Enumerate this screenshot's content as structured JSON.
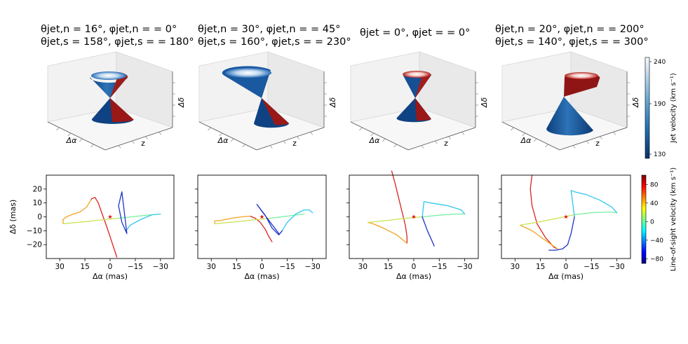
{
  "panel_titles": [
    {
      "line1": "θjet,n = 16°, φjet,n = = 0°",
      "line2": "θjet,s = 158°, φjet,s = = 180°"
    },
    {
      "line1": "θjet,n = 30°, φjet,n = = 45°",
      "line2": "θjet,s = 160°, φjet,s = = 230°"
    },
    {
      "line1": "θjet = 0°, φjet = = 0°",
      "line2": ""
    },
    {
      "line1": "θjet,n = 20°, φjet,n = = 200°",
      "line2": "θjet,s = 140°, φjet,s = = 300°"
    }
  ],
  "axis3d_labels": {
    "x": "Δα",
    "y": "z",
    "z": "Δδ"
  },
  "colorbars": {
    "top": {
      "label": "Jet velocity (km s⁻¹)",
      "ticks": [
        130,
        190,
        240
      ],
      "range": [
        125,
        245
      ],
      "colormap": "Blues"
    },
    "bottom": {
      "label": "Line-of-sight velocity (km s⁻¹)",
      "ticks": [
        80,
        40,
        0,
        -40,
        -80
      ],
      "tick_labels": [
        "80",
        "40",
        "0",
        "−40",
        "−80"
      ],
      "range": [
        -90,
        100
      ],
      "colormap": "jet"
    }
  },
  "chart_data": [
    {
      "type": "line",
      "panel": 1,
      "xlabel": "Δα (mas)",
      "ylabel": "Δδ (mas)",
      "xlim": [
        38,
        -38
      ],
      "ylim": [
        -30,
        30
      ],
      "xticks": [
        30,
        15,
        0,
        -15,
        -30
      ],
      "xtick_labels": [
        "30",
        "15",
        "0",
        "−15",
        "−30"
      ],
      "yticks": [
        20,
        10,
        0,
        -10,
        -20
      ],
      "ytick_labels": [
        "20",
        "10",
        "0",
        "−10",
        "−20"
      ],
      "marker": {
        "x": 0,
        "y": 0,
        "symbol": "star",
        "color": "#e3141c"
      },
      "series": [
        {
          "color": "#d9231f",
          "x": [
            -4,
            -1,
            2,
            5,
            7,
            9,
            11,
            11.5
          ],
          "y": [
            -29,
            -18,
            -7,
            3,
            10,
            14,
            13,
            12
          ]
        },
        {
          "color": "#f3a21f",
          "x": [
            11.5,
            14,
            18,
            22,
            26,
            28,
            28
          ],
          "y": [
            12,
            7,
            3.5,
            2,
            0,
            -2,
            -5
          ]
        },
        {
          "color": "#c7e44d",
          "x": [
            28,
            15,
            5,
            -5
          ],
          "y": [
            -5,
            -3.5,
            -2.2,
            -1
          ]
        },
        {
          "color": "#72f0a0",
          "x": [
            -5,
            -15,
            -25
          ],
          "y": [
            -1,
            0.3,
            1.5
          ]
        },
        {
          "color": "#2ec8ee",
          "x": [
            -30,
            -25,
            -18,
            -12,
            -9.5
          ],
          "y": [
            2,
            1.5,
            -2,
            -6,
            -10
          ]
        },
        {
          "color": "#2034c6",
          "x": [
            -9.5,
            -10,
            -7,
            -5,
            -7,
            -10
          ],
          "y": [
            -10,
            -12,
            -4,
            8,
            18,
            -12
          ]
        }
      ]
    },
    {
      "type": "line",
      "panel": 2,
      "xlabel": "Δα (mas)",
      "xlim": [
        38,
        -38
      ],
      "ylim": [
        -30,
        30
      ],
      "xticks": [
        30,
        15,
        0,
        -15,
        -30
      ],
      "xtick_labels": [
        "30",
        "15",
        "0",
        "−15",
        "−30"
      ],
      "marker": {
        "x": 0,
        "y": 0,
        "symbol": "star",
        "color": "#e3141c"
      },
      "series": [
        {
          "color": "#d9231f",
          "x": [
            -6,
            -4,
            -2,
            1,
            4,
            7
          ],
          "y": [
            -18,
            -14,
            -9,
            -4,
            -1,
            0.5
          ]
        },
        {
          "color": "#f3a21f",
          "x": [
            7,
            12,
            18,
            24,
            28,
            28
          ],
          "y": [
            0.5,
            0,
            -1,
            -2.5,
            -3,
            -5
          ]
        },
        {
          "color": "#c7e44d",
          "x": [
            28,
            15,
            5,
            -5
          ],
          "y": [
            -5,
            -3.5,
            -2.2,
            -1
          ]
        },
        {
          "color": "#72f0a0",
          "x": [
            -5,
            -15,
            -25
          ],
          "y": [
            -1,
            0.5,
            2
          ]
        },
        {
          "color": "#2ec8ee",
          "x": [
            -30,
            -28,
            -25,
            -20,
            -15,
            -12
          ],
          "y": [
            3,
            5,
            5,
            2,
            -4,
            -10
          ]
        },
        {
          "color": "#2034c6",
          "x": [
            -12,
            -10,
            -6,
            -2,
            3,
            0,
            -5,
            -10
          ],
          "y": [
            -10,
            -13,
            -8,
            1,
            9,
            4,
            -4,
            -12
          ]
        }
      ]
    },
    {
      "type": "line",
      "panel": 3,
      "xlabel": "Δα (mas)",
      "xlim": [
        38,
        -38
      ],
      "ylim": [
        -30,
        30
      ],
      "xticks": [
        30,
        15,
        0,
        -15,
        -30
      ],
      "xtick_labels": [
        "30",
        "15",
        "0",
        "−15",
        "−30"
      ],
      "marker": {
        "x": 0,
        "y": 0,
        "symbol": "star",
        "color": "#e3141c"
      },
      "series": [
        {
          "color": "#d9231f",
          "x": [
            13,
            11,
            9,
            7,
            5,
            4,
            4
          ],
          "y": [
            33,
            24,
            14,
            4,
            -6,
            -14,
            -19
          ]
        },
        {
          "color": "#f3a21f",
          "x": [
            4,
            10,
            18,
            24,
            27
          ],
          "y": [
            -19,
            -13,
            -8,
            -5,
            -4
          ]
        },
        {
          "color": "#c7e44d",
          "x": [
            27,
            15,
            5,
            -5
          ],
          "y": [
            -4,
            -2.5,
            -1,
            0
          ]
        },
        {
          "color": "#72f0a0",
          "x": [
            -5,
            -15,
            -25,
            -30
          ],
          "y": [
            0,
            1.2,
            2,
            2
          ]
        },
        {
          "color": "#2ec8ee",
          "x": [
            -30,
            -28,
            -20,
            -10,
            -6,
            -5
          ],
          "y": [
            2,
            5,
            8,
            10,
            11,
            0
          ]
        },
        {
          "color": "#2034c6",
          "x": [
            -5,
            -8,
            -11,
            -12
          ],
          "y": [
            0,
            -10,
            -18,
            -21
          ]
        }
      ]
    },
    {
      "type": "line",
      "panel": 4,
      "xlabel": "Δα (mas)",
      "xlim": [
        38,
        -38
      ],
      "ylim": [
        -30,
        30
      ],
      "xticks": [
        30,
        15,
        0,
        -15,
        -30
      ],
      "xtick_labels": [
        "30",
        "15",
        "0",
        "−15",
        "−30"
      ],
      "marker": {
        "x": 0,
        "y": 0,
        "symbol": "star",
        "color": "#e3141c"
      },
      "series": [
        {
          "color": "#d9231f",
          "x": [
            20,
            21,
            20,
            17,
            12,
            7,
            5
          ],
          "y": [
            30,
            20,
            8,
            -5,
            -15,
            -22,
            -23
          ]
        },
        {
          "color": "#f3a21f",
          "x": [
            5,
            12,
            20,
            27
          ],
          "y": [
            -23,
            -17,
            -10,
            -6
          ]
        },
        {
          "color": "#c7e44d",
          "x": [
            27,
            15,
            5,
            -5
          ],
          "y": [
            -6,
            -3.5,
            -1,
            1.5
          ]
        },
        {
          "color": "#72f0a0",
          "x": [
            -5,
            -15,
            -25,
            -30
          ],
          "y": [
            1.5,
            3,
            3.5,
            3
          ]
        },
        {
          "color": "#2ec8ee",
          "x": [
            -30,
            -27,
            -20,
            -12,
            -5,
            -3,
            -5
          ],
          "y": [
            3,
            7,
            12,
            16,
            18,
            19,
            0
          ]
        },
        {
          "color": "#2034c6",
          "x": [
            -5,
            -3,
            -1,
            2,
            6,
            10
          ],
          "y": [
            0,
            -12,
            -20,
            -23,
            -24,
            -24
          ]
        }
      ]
    }
  ]
}
